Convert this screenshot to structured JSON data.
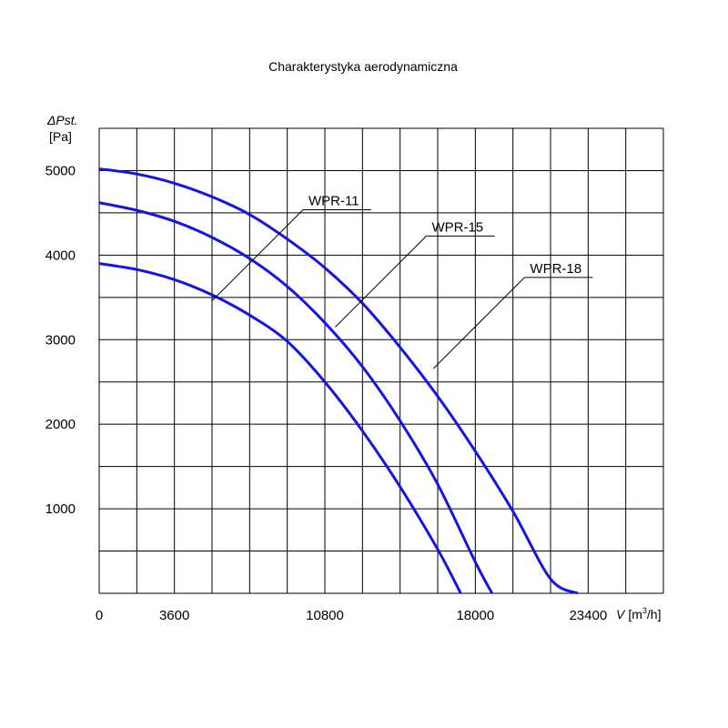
{
  "chart_data": {
    "type": "line",
    "title": "Charakterystyka aerodynamiczna",
    "ylabel_symbol": "ΔPst.",
    "ylabel_unit": "[Pa]",
    "xlabel_symbol": "V",
    "xlabel_unit_prefix": "[m",
    "xlabel_unit_sup": "3",
    "xlabel_unit_suffix": "/h]",
    "xlim": [
      0,
      27000
    ],
    "ylim": [
      0,
      5500
    ],
    "x_tick_labels": [
      {
        "value": 0,
        "label": "0"
      },
      {
        "value": 3600,
        "label": "3600"
      },
      {
        "value": 10800,
        "label": "10800"
      },
      {
        "value": 18000,
        "label": "18000"
      },
      {
        "value": 23400,
        "label": "23400"
      }
    ],
    "y_tick_labels": [
      {
        "value": 1000,
        "label": "1000"
      },
      {
        "value": 2000,
        "label": "2000"
      },
      {
        "value": 3000,
        "label": "3000"
      },
      {
        "value": 4000,
        "label": "4000"
      },
      {
        "value": 5000,
        "label": "5000"
      }
    ],
    "grid": {
      "on": true,
      "x_step": 1800,
      "y_step": 500
    },
    "series": [
      {
        "name": "WPR-11",
        "color": "#1414e6",
        "points": [
          [
            0,
            3900
          ],
          [
            1800,
            3830
          ],
          [
            3600,
            3710
          ],
          [
            5400,
            3530
          ],
          [
            7200,
            3290
          ],
          [
            9000,
            2980
          ],
          [
            10800,
            2500
          ],
          [
            12600,
            1920
          ],
          [
            14400,
            1260
          ],
          [
            16200,
            520
          ],
          [
            17300,
            0
          ]
        ]
      },
      {
        "name": "WPR-15",
        "color": "#1414e6",
        "points": [
          [
            0,
            4620
          ],
          [
            1800,
            4530
          ],
          [
            3600,
            4400
          ],
          [
            5400,
            4210
          ],
          [
            7200,
            3960
          ],
          [
            9000,
            3630
          ],
          [
            10800,
            3200
          ],
          [
            12600,
            2680
          ],
          [
            14400,
            2040
          ],
          [
            16200,
            1290
          ],
          [
            18000,
            370
          ],
          [
            18800,
            0
          ]
        ]
      },
      {
        "name": "WPR-18",
        "color": "#1414e6",
        "points": [
          [
            0,
            5020
          ],
          [
            1800,
            4960
          ],
          [
            3600,
            4850
          ],
          [
            5400,
            4690
          ],
          [
            7200,
            4480
          ],
          [
            9000,
            4190
          ],
          [
            10800,
            3850
          ],
          [
            12600,
            3430
          ],
          [
            14400,
            2910
          ],
          [
            16200,
            2330
          ],
          [
            18000,
            1680
          ],
          [
            19800,
            970
          ],
          [
            21600,
            170
          ],
          [
            22900,
            0
          ]
        ]
      }
    ],
    "annotations": [
      {
        "series": "WPR-11",
        "text": "WPR-11",
        "target": [
          5400,
          3460
        ]
      },
      {
        "series": "WPR-15",
        "text": "WPR-15",
        "target": [
          11300,
          3150
        ]
      },
      {
        "series": "WPR-18",
        "text": "WPR-18",
        "target": [
          16000,
          2660
        ]
      }
    ]
  }
}
